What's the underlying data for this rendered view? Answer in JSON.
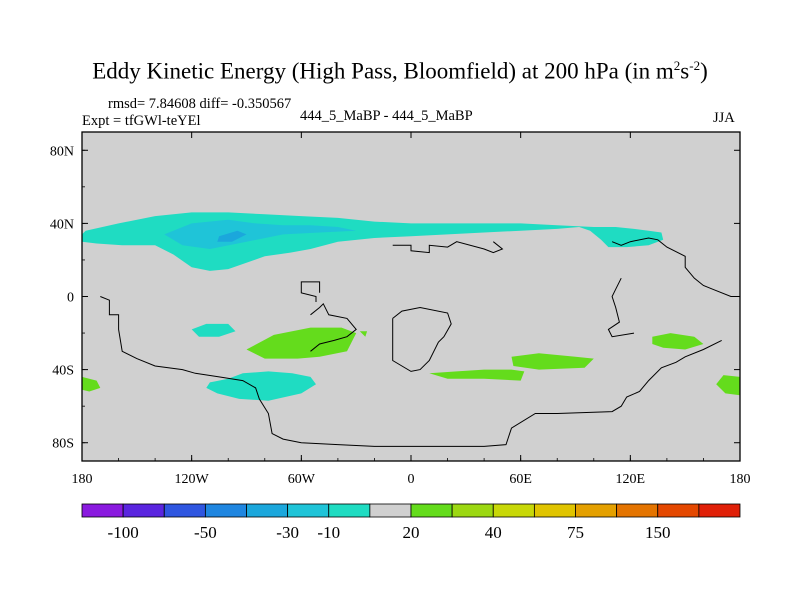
{
  "title": {
    "main": "Eddy Kinetic Energy (High Pass, Bloomfield) at 200 hPa (in m",
    "sup1": "2",
    "s": "s",
    "sup2": "-2",
    "close": ")"
  },
  "info": {
    "rmsd": "rmsd= 7.84608 diff= -0.350567",
    "expt": "Expt = tfGWl-teYEl",
    "center": "444_5_MaBP - 444_5_MaBP",
    "season": "JJA"
  },
  "chart_data": {
    "type": "heatmap",
    "projection": "cylindrical-equidistant",
    "field": "eddy kinetic energy difference",
    "units": "m2 s-2",
    "xlim": [
      -180,
      180
    ],
    "ylim": [
      -90,
      90
    ],
    "x_ticks": [
      {
        "value": -180,
        "label": "180"
      },
      {
        "value": -120,
        "label": "120W"
      },
      {
        "value": -60,
        "label": "60W"
      },
      {
        "value": 0,
        "label": "0"
      },
      {
        "value": 60,
        "label": "60E"
      },
      {
        "value": 120,
        "label": "120E"
      },
      {
        "value": 180,
        "label": "180"
      }
    ],
    "y_ticks": [
      {
        "value": 80,
        "label": "80N"
      },
      {
        "value": 40,
        "label": "40N"
      },
      {
        "value": 0,
        "label": "0"
      },
      {
        "value": -40,
        "label": "40S"
      },
      {
        "value": -80,
        "label": "80S"
      }
    ],
    "colorbar": {
      "colors": [
        "#8a1adf",
        "#5a25df",
        "#2f56e0",
        "#1f86e0",
        "#1ba7dc",
        "#1fc4d8",
        "#1fdcc2",
        "#d0d0d0",
        "#64dc1c",
        "#9cd812",
        "#c8d808",
        "#e0c400",
        "#e4a000",
        "#e47400",
        "#e44800",
        "#e02008"
      ],
      "labels": [
        {
          "after_box": 1,
          "text": "-100"
        },
        {
          "after_box": 3,
          "text": "-50"
        },
        {
          "after_box": 5,
          "text": "-30"
        },
        {
          "after_box": 6,
          "text": "-10"
        },
        {
          "after_box": 8,
          "text": "20"
        },
        {
          "after_box": 10,
          "text": "40"
        },
        {
          "after_box": 12,
          "text": "75"
        },
        {
          "after_box": 14,
          "text": "150"
        }
      ]
    },
    "background_color": "#d0d0d0",
    "regions": [
      {
        "name": "nh-jet-band-cyan",
        "level": -10,
        "color": "#1fdcc2",
        "points": [
          [
            -178,
            36
          ],
          [
            -160,
            40
          ],
          [
            -140,
            44
          ],
          [
            -120,
            46
          ],
          [
            -100,
            46
          ],
          [
            -80,
            45
          ],
          [
            -60,
            44
          ],
          [
            -40,
            43
          ],
          [
            -20,
            41
          ],
          [
            0,
            40
          ],
          [
            20,
            40
          ],
          [
            40,
            40
          ],
          [
            60,
            40
          ],
          [
            80,
            39
          ],
          [
            100,
            38
          ],
          [
            112,
            38
          ],
          [
            122,
            37
          ],
          [
            130,
            36
          ],
          [
            137,
            35
          ],
          [
            138,
            31
          ],
          [
            130,
            28
          ],
          [
            118,
            27
          ],
          [
            108,
            27
          ],
          [
            104,
            31
          ],
          [
            98,
            36
          ],
          [
            92,
            38
          ],
          [
            80,
            37
          ],
          [
            60,
            36
          ],
          [
            40,
            35
          ],
          [
            20,
            34
          ],
          [
            0,
            33
          ],
          [
            -20,
            32
          ],
          [
            -40,
            30
          ],
          [
            -55,
            26
          ],
          [
            -66,
            24
          ],
          [
            -80,
            22
          ],
          [
            -100,
            15
          ],
          [
            -110,
            14
          ],
          [
            -120,
            16
          ],
          [
            -130,
            23
          ],
          [
            -140,
            28
          ],
          [
            -158,
            28
          ],
          [
            -172,
            29
          ],
          [
            -180,
            30
          ],
          [
            -180,
            34
          ]
        ]
      },
      {
        "name": "nh-jet-core-blue",
        "level": -30,
        "color": "#1fc4d8",
        "points": [
          [
            -135,
            34
          ],
          [
            -120,
            40
          ],
          [
            -100,
            42
          ],
          [
            -85,
            40
          ],
          [
            -70,
            39
          ],
          [
            -55,
            39
          ],
          [
            -40,
            38
          ],
          [
            -30,
            36
          ],
          [
            -50,
            35
          ],
          [
            -70,
            34
          ],
          [
            -90,
            30
          ],
          [
            -110,
            26
          ],
          [
            -125,
            28
          ]
        ]
      },
      {
        "name": "nh-jet-max",
        "level": -50,
        "color": "#1ba7dc",
        "points": [
          [
            -105,
            33
          ],
          [
            -95,
            36
          ],
          [
            -90,
            34
          ],
          [
            -98,
            30
          ],
          [
            -106,
            30
          ]
        ]
      },
      {
        "name": "sh-cyan-patch-east-pacific",
        "level": -10,
        "color": "#1fdcc2",
        "points": [
          [
            -120,
            -18
          ],
          [
            -112,
            -15
          ],
          [
            -100,
            -15
          ],
          [
            -96,
            -19
          ],
          [
            -105,
            -22
          ],
          [
            -116,
            -22
          ]
        ]
      },
      {
        "name": "sh-cyan-patch-south-pacific",
        "level": -10,
        "color": "#1fdcc2",
        "points": [
          [
            -110,
            -47
          ],
          [
            -100,
            -45
          ],
          [
            -92,
            -42
          ],
          [
            -78,
            -41
          ],
          [
            -65,
            -42
          ],
          [
            -55,
            -44
          ],
          [
            -52,
            -48
          ],
          [
            -60,
            -53
          ],
          [
            -78,
            -57
          ],
          [
            -94,
            -56
          ],
          [
            -106,
            -53
          ],
          [
            -112,
            -50
          ]
        ]
      },
      {
        "name": "south-atlantic-green",
        "level": 20,
        "color": "#64dc1c",
        "points": [
          [
            -90,
            -29
          ],
          [
            -75,
            -21
          ],
          [
            -55,
            -17
          ],
          [
            -38,
            -17
          ],
          [
            -30,
            -20
          ],
          [
            -35,
            -30
          ],
          [
            -50,
            -33
          ],
          [
            -62,
            -34
          ],
          [
            -80,
            -34
          ]
        ]
      },
      {
        "name": "sh-green-patch-dateline-west",
        "level": 20,
        "color": "#64dc1c",
        "points": [
          [
            -180,
            -44
          ],
          [
            -172,
            -46
          ],
          [
            -170,
            -50
          ],
          [
            -176,
            -52
          ],
          [
            -180,
            -51
          ]
        ]
      },
      {
        "name": "sh-green-patch-dateline-east",
        "level": 20,
        "color": "#64dc1c",
        "points": [
          [
            180,
            -44
          ],
          [
            171,
            -43
          ],
          [
            167,
            -48
          ],
          [
            172,
            -53
          ],
          [
            180,
            -54
          ]
        ]
      },
      {
        "name": "sh-green-patch-south-atlantic",
        "level": 20,
        "color": "#64dc1c",
        "points": [
          [
            10,
            -42
          ],
          [
            25,
            -41
          ],
          [
            40,
            -40
          ],
          [
            55,
            -40
          ],
          [
            62,
            -41
          ],
          [
            60,
            -46
          ],
          [
            40,
            -45
          ],
          [
            20,
            -45
          ]
        ]
      },
      {
        "name": "sh-green-patch-indian-ocean",
        "level": 20,
        "color": "#64dc1c",
        "points": [
          [
            55,
            -33
          ],
          [
            70,
            -31
          ],
          [
            90,
            -33
          ],
          [
            100,
            -34
          ],
          [
            95,
            -39
          ],
          [
            70,
            -40
          ],
          [
            56,
            -38
          ]
        ]
      },
      {
        "name": "sh-green-patch-australia",
        "level": 20,
        "color": "#64dc1c",
        "points": [
          [
            132,
            -22
          ],
          [
            142,
            -20
          ],
          [
            155,
            -22
          ],
          [
            160,
            -26
          ],
          [
            150,
            -29
          ],
          [
            138,
            -28
          ],
          [
            132,
            -26
          ]
        ]
      },
      {
        "name": "small-green-dot",
        "level": 20,
        "color": "#64dc1c",
        "points": [
          [
            -28,
            -19
          ],
          [
            -24,
            -19
          ],
          [
            -25,
            -22
          ]
        ]
      }
    ],
    "coastlines": [
      {
        "name": "america-west-coast-north",
        "points": [
          [
            -170,
            0
          ],
          [
            -165,
            -2
          ],
          [
            -165,
            -10
          ],
          [
            -160,
            -10
          ],
          [
            -160,
            -18
          ],
          [
            -158,
            -30
          ],
          [
            -150,
            -34
          ],
          [
            -140,
            -38
          ],
          [
            -125,
            -40
          ],
          [
            -118,
            -42
          ],
          [
            -105,
            -44
          ],
          [
            -92,
            -46
          ],
          [
            -85,
            -50
          ],
          [
            -83,
            -56
          ],
          [
            -78,
            -64
          ],
          [
            -76,
            -75
          ],
          [
            -70,
            -78
          ],
          [
            -60,
            -80
          ],
          [
            -40,
            -81
          ],
          [
            -20,
            -82
          ],
          [
            0,
            -82
          ],
          [
            20,
            -82
          ],
          [
            40,
            -82
          ],
          [
            52,
            -81
          ],
          [
            55,
            -72
          ],
          [
            68,
            -64
          ],
          [
            80,
            -64
          ],
          [
            110,
            -63
          ],
          [
            115,
            -60
          ],
          [
            118,
            -55
          ],
          [
            125,
            -52
          ],
          [
            130,
            -46
          ],
          [
            137,
            -39
          ],
          [
            145,
            -36
          ],
          [
            150,
            -33
          ],
          [
            160,
            -29
          ],
          [
            170,
            -24
          ]
        ]
      },
      {
        "name": "south-america-block",
        "points": [
          [
            -55,
            -10
          ],
          [
            -50,
            -6
          ],
          [
            -48,
            -4
          ],
          [
            -45,
            -10
          ],
          [
            -35,
            -12
          ],
          [
            -30,
            -18
          ],
          [
            -35,
            -22
          ],
          [
            -42,
            -24
          ],
          [
            -50,
            -26
          ],
          [
            -55,
            -30
          ]
        ]
      },
      {
        "name": "africa",
        "points": [
          [
            -10,
            -12
          ],
          [
            -5,
            -8
          ],
          [
            5,
            -6
          ],
          [
            20,
            -9
          ],
          [
            22,
            -15
          ],
          [
            18,
            -22
          ],
          [
            15,
            -25
          ],
          [
            10,
            -35
          ],
          [
            5,
            -40
          ],
          [
            0,
            -41
          ],
          [
            -5,
            -38
          ],
          [
            -10,
            -35
          ],
          [
            -10,
            -12
          ]
        ]
      },
      {
        "name": "north-africa-coast",
        "points": [
          [
            -52,
            -3
          ],
          [
            -52,
            0
          ],
          [
            -60,
            2
          ],
          [
            -60,
            8
          ],
          [
            -50,
            8
          ],
          [
            -50,
            2
          ]
        ]
      },
      {
        "name": "eurasia-coast",
        "points": [
          [
            -10,
            28
          ],
          [
            0,
            28
          ],
          [
            0,
            25
          ],
          [
            10,
            24
          ],
          [
            10,
            28
          ],
          [
            20,
            27
          ],
          [
            25,
            30
          ],
          [
            40,
            26
          ],
          [
            45,
            24
          ],
          [
            50,
            26
          ],
          [
            45,
            30
          ]
        ]
      },
      {
        "name": "asia-east",
        "points": [
          [
            110,
            30
          ],
          [
            115,
            28
          ],
          [
            120,
            30
          ],
          [
            130,
            32
          ],
          [
            135,
            31
          ],
          [
            140,
            27
          ],
          [
            150,
            22
          ],
          [
            150,
            16
          ],
          [
            155,
            10
          ],
          [
            160,
            6
          ],
          [
            165,
            4
          ],
          [
            175,
            0
          ],
          [
            180,
            0
          ]
        ]
      },
      {
        "name": "asia-south",
        "points": [
          [
            115,
            10
          ],
          [
            112,
            4
          ],
          [
            110,
            0
          ],
          [
            112,
            -6
          ],
          [
            114,
            -14
          ],
          [
            108,
            -18
          ],
          [
            110,
            -22
          ],
          [
            122,
            -20
          ]
        ]
      }
    ]
  }
}
